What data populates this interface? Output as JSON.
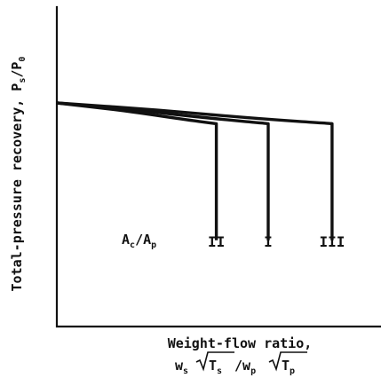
{
  "chart_data": {
    "type": "line",
    "title": "",
    "ylabel": "Total-pressure recovery, P",
    "ylabel_sub1": "s",
    "ylabel_slash": "/P",
    "ylabel_sub2": "0",
    "xlabel_line1": "Weight-flow ratio,",
    "xlabel_line2": {
      "w1": "w",
      "w1_sub": "s",
      "T1": "T",
      "T1_sub": "s",
      "slash": "/",
      "w2": "w",
      "w2_sub": "p",
      "T2": "T",
      "T2_sub": "p"
    },
    "grid": false,
    "xlim": [
      0,
      1
    ],
    "ylim": [
      0,
      1
    ],
    "x_ticks_shown": false,
    "y_ticks_shown": false,
    "annotation": {
      "main": "A",
      "sub1": "c",
      "slash": "/A",
      "sub2": "p"
    },
    "series": [
      {
        "name": "II",
        "curve": [
          [
            0.0,
            0.7
          ],
          [
            0.25,
            0.675
          ],
          [
            0.45,
            0.649
          ],
          [
            0.572,
            0.635
          ]
        ],
        "choke_x": 0.572,
        "drop_to_y": 0.27
      },
      {
        "name": "I",
        "curve": [
          [
            0.0,
            0.7
          ],
          [
            0.3,
            0.676
          ],
          [
            0.55,
            0.652
          ],
          [
            0.758,
            0.635
          ]
        ],
        "choke_x": 0.758,
        "drop_to_y": 0.27
      },
      {
        "name": "III",
        "curve": [
          [
            0.0,
            0.7
          ],
          [
            0.35,
            0.679
          ],
          [
            0.7,
            0.652
          ],
          [
            0.987,
            0.635
          ]
        ],
        "choke_x": 0.987,
        "drop_to_y": 0.27
      }
    ]
  }
}
